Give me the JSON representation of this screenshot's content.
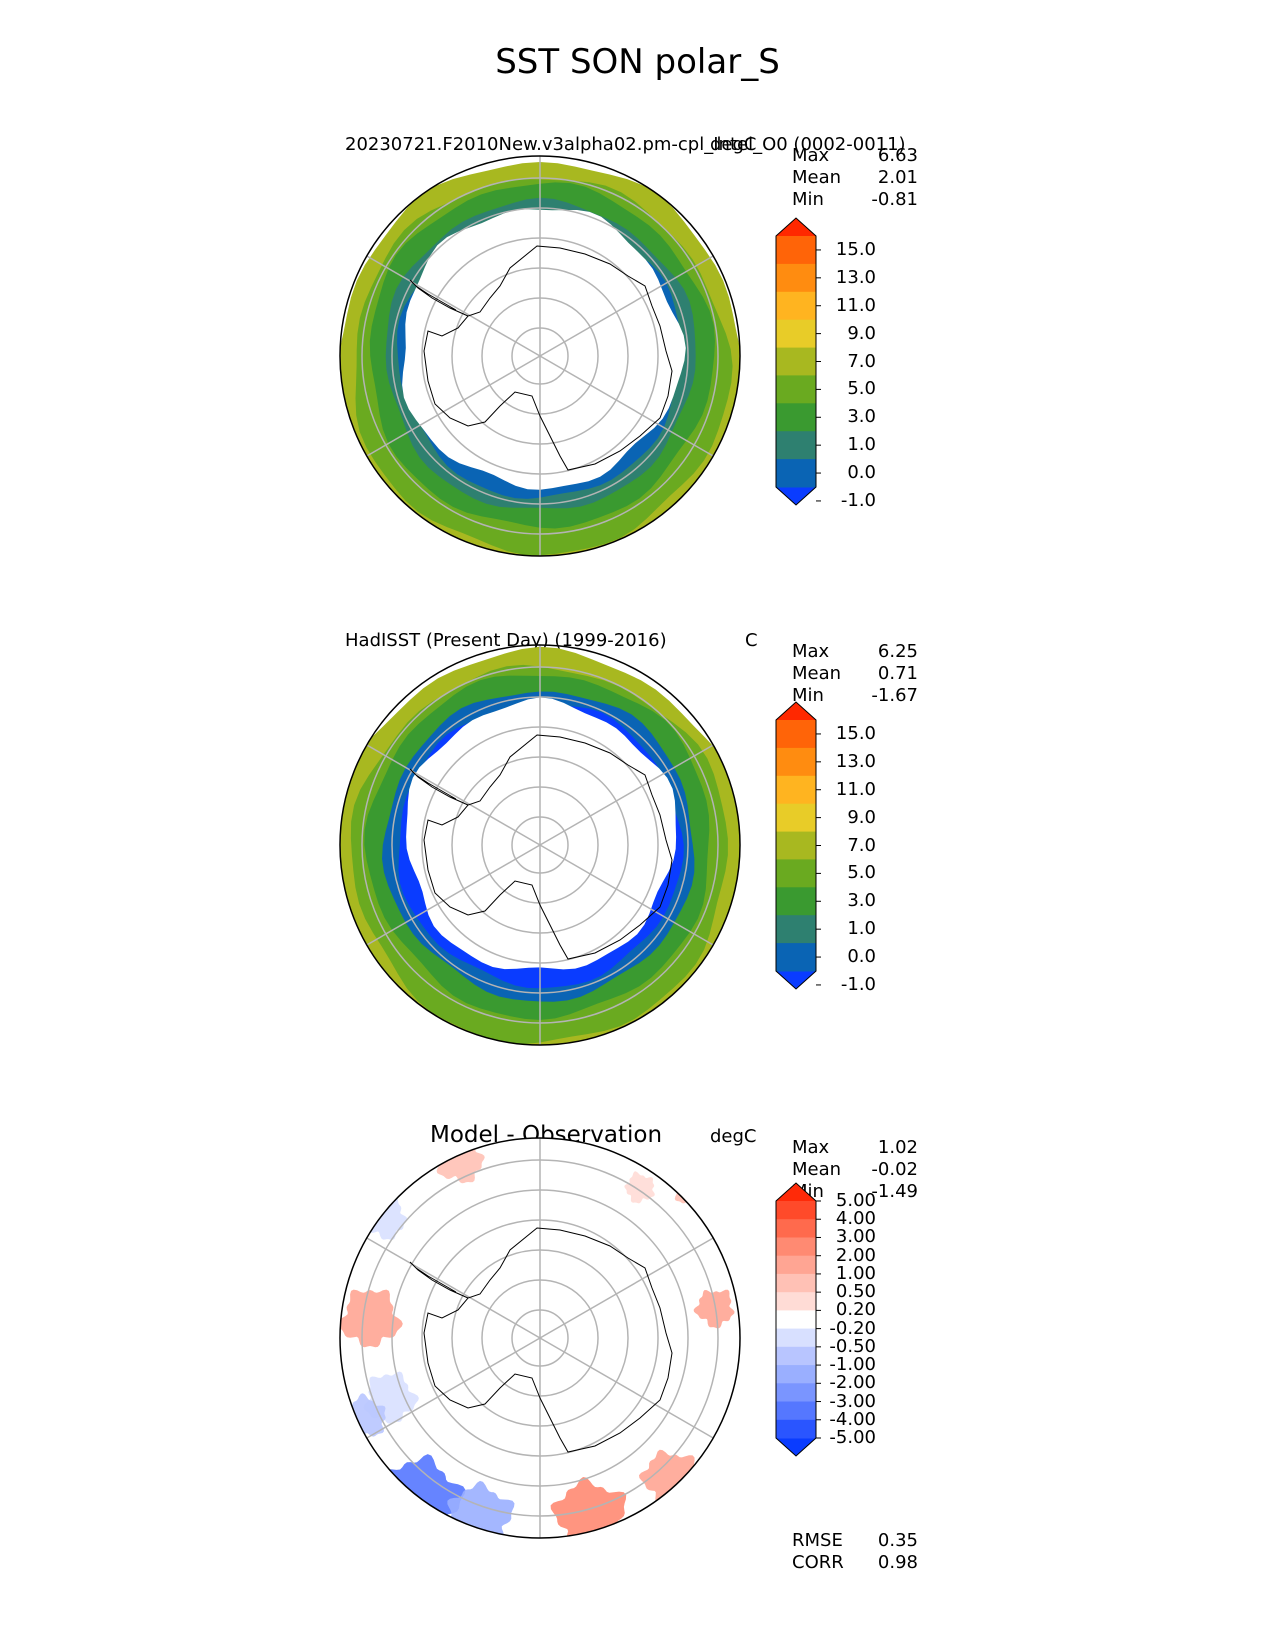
{
  "figure": {
    "title": "SST SON polar_S"
  },
  "colors": {
    "sst_levels": [
      "#0a3cff",
      "#0a64b4",
      "#2e8070",
      "#3a9a30",
      "#6aaa20",
      "#a8b820",
      "#e8cc28",
      "#ffb420",
      "#ff8c10",
      "#ff6408",
      "#ff2800"
    ],
    "diff_levels": [
      "#0a3cff",
      "#2a55ff",
      "#5577ff",
      "#7a95ff",
      "#9aafff",
      "#b8c5ff",
      "#d8e0ff",
      "#ffffff",
      "#ffdcd6",
      "#ffc1b5",
      "#ffa593",
      "#ff8a72",
      "#ff6a4d",
      "#ff4a2a",
      "#ff2a08"
    ],
    "land": "#ffffff",
    "coast": "#000000",
    "grid": "#b4b4b4"
  },
  "panels": [
    {
      "id": "model",
      "title_left": "20230721.F2010New.v3alpha02.pm-cpl_Intel_O0 (0002-0011)",
      "units": "degC",
      "stats": [
        {
          "label": "Max",
          "value": "6.63"
        },
        {
          "label": "Mean",
          "value": "2.01"
        },
        {
          "label": "Min",
          "value": "-0.81"
        }
      ],
      "colorbar_ticks": [
        "15.0",
        "13.0",
        "11.0",
        "9.0",
        "7.0",
        "5.0",
        "3.0",
        "1.0",
        "0.0",
        "-1.0"
      ],
      "ring_levels": [
        5,
        4,
        3,
        2,
        1
      ]
    },
    {
      "id": "obs",
      "title_left": "HadISST (Present Day) (1999-2016)",
      "units": "C",
      "stats": [
        {
          "label": "Max",
          "value": "6.25"
        },
        {
          "label": "Mean",
          "value": "0.71"
        },
        {
          "label": "Min",
          "value": "-1.67"
        }
      ],
      "colorbar_ticks": [
        "15.0",
        "13.0",
        "11.0",
        "9.0",
        "7.0",
        "5.0",
        "3.0",
        "1.0",
        "0.0",
        "-1.0"
      ],
      "ring_levels": [
        5,
        4,
        3,
        1,
        0
      ]
    },
    {
      "id": "diff",
      "title_center": "Model - Observation",
      "units": "degC",
      "stats": [
        {
          "label": "Max",
          "value": "1.02"
        },
        {
          "label": "Mean",
          "value": "-0.02"
        },
        {
          "label": "Min",
          "value": "-1.49"
        }
      ],
      "colorbar_ticks": [
        "5.00",
        "4.00",
        "3.00",
        "2.00",
        "1.00",
        "0.50",
        "0.20",
        "-0.20",
        "-0.50",
        "-1.00",
        "-2.00",
        "-3.00",
        "-4.00",
        "-5.00"
      ],
      "metrics": [
        {
          "label": "RMSE",
          "value": "0.35"
        },
        {
          "label": "CORR",
          "value": "0.98"
        }
      ]
    }
  ],
  "chart_data": [
    {
      "type": "heatmap",
      "title": "20230721.F2010New.v3alpha02.pm-cpl_Intel_O0 (0002-0011)",
      "projection": "South Polar Stereographic",
      "variable": "SST",
      "season": "SON",
      "units": "degC",
      "summary": {
        "max": 6.63,
        "mean": 2.01,
        "min": -0.81
      },
      "contour_levels": [
        -1.0,
        0.0,
        1.0,
        3.0,
        5.0,
        7.0,
        9.0,
        11.0,
        13.0,
        15.0
      ],
      "extend": "both"
    },
    {
      "type": "heatmap",
      "title": "HadISST (Present Day) (1999-2016)",
      "projection": "South Polar Stereographic",
      "variable": "SST",
      "season": "SON",
      "units": "C",
      "summary": {
        "max": 6.25,
        "mean": 0.71,
        "min": -1.67
      },
      "contour_levels": [
        -1.0,
        0.0,
        1.0,
        3.0,
        5.0,
        7.0,
        9.0,
        11.0,
        13.0,
        15.0
      ],
      "extend": "both"
    },
    {
      "type": "heatmap",
      "title": "Model - Observation",
      "projection": "South Polar Stereographic",
      "units": "degC",
      "summary": {
        "max": 1.02,
        "mean": -0.02,
        "min": -1.49
      },
      "contour_levels": [
        -5.0,
        -4.0,
        -3.0,
        -2.0,
        -1.0,
        -0.5,
        -0.2,
        0.2,
        0.5,
        1.0,
        2.0,
        3.0,
        4.0,
        5.0
      ],
      "extend": "both",
      "rmse": 0.35,
      "corr": 0.98
    }
  ]
}
